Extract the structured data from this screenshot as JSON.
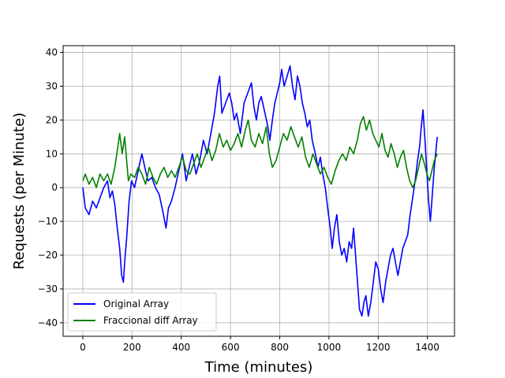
{
  "chart_data": {
    "type": "line",
    "title": "",
    "xlabel": "Time (minutes)",
    "ylabel": "Requests (per Minute)",
    "xlim": [
      -80,
      1510
    ],
    "ylim": [
      -44,
      42
    ],
    "xticks": [
      0,
      200,
      400,
      600,
      800,
      1000,
      1200,
      1400
    ],
    "yticks": [
      -40,
      -30,
      -20,
      -10,
      0,
      10,
      20,
      30,
      40
    ],
    "grid": true,
    "legend_position": "lower-left",
    "series": [
      {
        "name": "Original Array",
        "color": "#0000ff",
        "points": [
          [
            0,
            0
          ],
          [
            10,
            -6
          ],
          [
            25,
            -8
          ],
          [
            40,
            -4
          ],
          [
            55,
            -6
          ],
          [
            70,
            -3
          ],
          [
            85,
            0
          ],
          [
            100,
            2
          ],
          [
            110,
            -3
          ],
          [
            120,
            -1
          ],
          [
            130,
            -5
          ],
          [
            140,
            -12
          ],
          [
            150,
            -18
          ],
          [
            158,
            -26
          ],
          [
            165,
            -28
          ],
          [
            170,
            -22
          ],
          [
            178,
            -15
          ],
          [
            188,
            -4
          ],
          [
            198,
            2
          ],
          [
            210,
            0
          ],
          [
            225,
            5
          ],
          [
            240,
            10
          ],
          [
            255,
            5
          ],
          [
            265,
            2
          ],
          [
            280,
            3
          ],
          [
            295,
            0
          ],
          [
            310,
            -2
          ],
          [
            325,
            -7
          ],
          [
            338,
            -12
          ],
          [
            348,
            -6
          ],
          [
            360,
            -4
          ],
          [
            375,
            0
          ],
          [
            390,
            5
          ],
          [
            405,
            10
          ],
          [
            420,
            2
          ],
          [
            432,
            6
          ],
          [
            445,
            10
          ],
          [
            460,
            4
          ],
          [
            475,
            8
          ],
          [
            490,
            14
          ],
          [
            505,
            10
          ],
          [
            520,
            16
          ],
          [
            535,
            22
          ],
          [
            548,
            30
          ],
          [
            556,
            33
          ],
          [
            565,
            22
          ],
          [
            580,
            25
          ],
          [
            595,
            28
          ],
          [
            605,
            25
          ],
          [
            615,
            20
          ],
          [
            625,
            22
          ],
          [
            640,
            16
          ],
          [
            655,
            25
          ],
          [
            670,
            28
          ],
          [
            685,
            31
          ],
          [
            695,
            24
          ],
          [
            705,
            20
          ],
          [
            715,
            25
          ],
          [
            725,
            27
          ],
          [
            740,
            22
          ],
          [
            752,
            18
          ],
          [
            760,
            14
          ],
          [
            770,
            20
          ],
          [
            780,
            25
          ],
          [
            790,
            28
          ],
          [
            800,
            31
          ],
          [
            808,
            35
          ],
          [
            818,
            30
          ],
          [
            830,
            33
          ],
          [
            842,
            36
          ],
          [
            852,
            30
          ],
          [
            862,
            26
          ],
          [
            872,
            33
          ],
          [
            882,
            30
          ],
          [
            892,
            25
          ],
          [
            902,
            22
          ],
          [
            912,
            18
          ],
          [
            922,
            20
          ],
          [
            932,
            14
          ],
          [
            945,
            10
          ],
          [
            955,
            6
          ],
          [
            965,
            9
          ],
          [
            975,
            4
          ],
          [
            985,
            0
          ],
          [
            995,
            -6
          ],
          [
            1005,
            -12
          ],
          [
            1013,
            -18
          ],
          [
            1022,
            -12
          ],
          [
            1032,
            -8
          ],
          [
            1042,
            -16
          ],
          [
            1052,
            -20
          ],
          [
            1062,
            -18
          ],
          [
            1072,
            -22
          ],
          [
            1082,
            -16
          ],
          [
            1092,
            -18
          ],
          [
            1100,
            -12
          ],
          [
            1108,
            -20
          ],
          [
            1116,
            -28
          ],
          [
            1124,
            -36
          ],
          [
            1134,
            -38
          ],
          [
            1142,
            -34
          ],
          [
            1150,
            -32
          ],
          [
            1160,
            -38
          ],
          [
            1170,
            -34
          ],
          [
            1180,
            -28
          ],
          [
            1190,
            -22
          ],
          [
            1200,
            -24
          ],
          [
            1210,
            -30
          ],
          [
            1220,
            -34
          ],
          [
            1230,
            -28
          ],
          [
            1240,
            -24
          ],
          [
            1250,
            -20
          ],
          [
            1260,
            -18
          ],
          [
            1270,
            -22
          ],
          [
            1280,
            -26
          ],
          [
            1290,
            -22
          ],
          [
            1300,
            -18
          ],
          [
            1310,
            -16
          ],
          [
            1320,
            -14
          ],
          [
            1330,
            -8
          ],
          [
            1340,
            -3
          ],
          [
            1350,
            2
          ],
          [
            1360,
            8
          ],
          [
            1368,
            12
          ],
          [
            1375,
            18
          ],
          [
            1382,
            23
          ],
          [
            1390,
            14
          ],
          [
            1398,
            4
          ],
          [
            1405,
            -4
          ],
          [
            1412,
            -10
          ],
          [
            1420,
            -2
          ],
          [
            1428,
            6
          ],
          [
            1436,
            12
          ],
          [
            1440,
            15
          ]
        ]
      },
      {
        "name": "Fraccional diff Array",
        "color": "#008000",
        "points": [
          [
            0,
            2
          ],
          [
            10,
            4
          ],
          [
            25,
            1
          ],
          [
            40,
            3
          ],
          [
            55,
            0
          ],
          [
            70,
            4
          ],
          [
            85,
            2
          ],
          [
            100,
            4
          ],
          [
            115,
            1
          ],
          [
            130,
            6
          ],
          [
            142,
            12
          ],
          [
            150,
            16
          ],
          [
            160,
            10
          ],
          [
            170,
            15
          ],
          [
            178,
            8
          ],
          [
            185,
            2
          ],
          [
            195,
            4
          ],
          [
            210,
            3
          ],
          [
            225,
            6
          ],
          [
            240,
            4
          ],
          [
            255,
            1
          ],
          [
            270,
            6
          ],
          [
            285,
            3
          ],
          [
            300,
            1
          ],
          [
            315,
            4
          ],
          [
            330,
            6
          ],
          [
            345,
            3
          ],
          [
            360,
            5
          ],
          [
            375,
            3
          ],
          [
            390,
            6
          ],
          [
            405,
            9
          ],
          [
            420,
            5
          ],
          [
            435,
            4
          ],
          [
            450,
            7
          ],
          [
            465,
            10
          ],
          [
            480,
            6
          ],
          [
            495,
            9
          ],
          [
            510,
            12
          ],
          [
            525,
            8
          ],
          [
            540,
            11
          ],
          [
            555,
            16
          ],
          [
            570,
            12
          ],
          [
            585,
            14
          ],
          [
            600,
            11
          ],
          [
            615,
            13
          ],
          [
            630,
            16
          ],
          [
            645,
            12
          ],
          [
            660,
            17
          ],
          [
            672,
            20
          ],
          [
            685,
            14
          ],
          [
            700,
            12
          ],
          [
            715,
            16
          ],
          [
            730,
            13
          ],
          [
            745,
            18
          ],
          [
            758,
            10
          ],
          [
            770,
            6
          ],
          [
            785,
            8
          ],
          [
            800,
            12
          ],
          [
            815,
            16
          ],
          [
            830,
            14
          ],
          [
            845,
            18
          ],
          [
            860,
            15
          ],
          [
            875,
            12
          ],
          [
            890,
            15
          ],
          [
            905,
            9
          ],
          [
            920,
            6
          ],
          [
            935,
            10
          ],
          [
            950,
            7
          ],
          [
            965,
            4
          ],
          [
            980,
            6
          ],
          [
            995,
            3
          ],
          [
            1010,
            1
          ],
          [
            1025,
            5
          ],
          [
            1040,
            8
          ],
          [
            1055,
            10
          ],
          [
            1070,
            8
          ],
          [
            1085,
            12
          ],
          [
            1100,
            10
          ],
          [
            1115,
            14
          ],
          [
            1128,
            19
          ],
          [
            1140,
            21
          ],
          [
            1152,
            17
          ],
          [
            1165,
            20
          ],
          [
            1178,
            16
          ],
          [
            1190,
            14
          ],
          [
            1203,
            12
          ],
          [
            1215,
            16
          ],
          [
            1228,
            11
          ],
          [
            1240,
            9
          ],
          [
            1252,
            13
          ],
          [
            1265,
            10
          ],
          [
            1278,
            6
          ],
          [
            1290,
            9
          ],
          [
            1303,
            11
          ],
          [
            1315,
            6
          ],
          [
            1328,
            2
          ],
          [
            1340,
            0
          ],
          [
            1352,
            2
          ],
          [
            1364,
            6
          ],
          [
            1376,
            10
          ],
          [
            1388,
            7
          ],
          [
            1398,
            4
          ],
          [
            1408,
            2
          ],
          [
            1418,
            5
          ],
          [
            1428,
            8
          ],
          [
            1440,
            10
          ]
        ]
      }
    ]
  }
}
